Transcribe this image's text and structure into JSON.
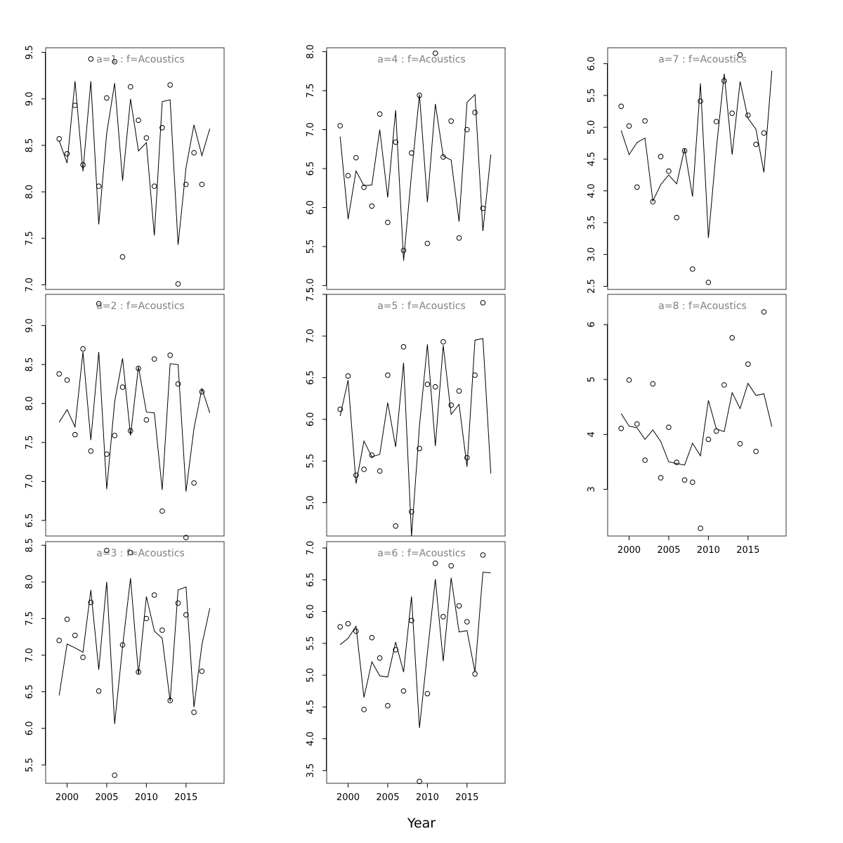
{
  "xlabel": "Year",
  "panel_title_color": "#7f7f7f",
  "chart_data": [
    {
      "type": "scatter",
      "title": "a=1  :  f=Acoustics",
      "ylim": [
        6.95,
        9.55
      ],
      "yticks": [
        7.0,
        7.5,
        8.0,
        8.5,
        9.0,
        9.5
      ],
      "x": [
        1999,
        2000,
        2001,
        2002,
        2003,
        2004,
        2005,
        2006,
        2007,
        2008,
        2009,
        2010,
        2011,
        2012,
        2013,
        2014,
        2015,
        2016,
        2017,
        2018
      ],
      "series": [
        {
          "mode": "points",
          "values": [
            8.57,
            8.41,
            8.93,
            8.29,
            9.43,
            8.06,
            9.01,
            9.4,
            7.3,
            9.13,
            8.77,
            8.58,
            8.06,
            8.69,
            9.15,
            7.01,
            8.08,
            8.42,
            8.08,
            null
          ]
        },
        {
          "mode": "line",
          "values": [
            8.55,
            8.31,
            9.19,
            8.22,
            9.19,
            7.65,
            8.63,
            9.17,
            8.12,
            9.0,
            8.44,
            8.53,
            7.53,
            8.97,
            8.99,
            7.43,
            8.26,
            8.72,
            8.39,
            8.68
          ]
        }
      ]
    },
    {
      "type": "scatter",
      "title": "a=2  :  f=Acoustics",
      "ylim": [
        6.3,
        9.4
      ],
      "yticks": [
        6.5,
        7.0,
        7.5,
        8.0,
        8.5,
        9.0
      ],
      "x": [
        1999,
        2000,
        2001,
        2002,
        2003,
        2004,
        2005,
        2006,
        2007,
        2008,
        2009,
        2010,
        2011,
        2012,
        2013,
        2014,
        2015,
        2016,
        2017,
        2018
      ],
      "series": [
        {
          "mode": "points",
          "values": [
            8.38,
            8.3,
            7.6,
            8.7,
            7.39,
            9.28,
            7.35,
            7.59,
            8.21,
            7.65,
            8.45,
            7.79,
            8.57,
            6.62,
            8.62,
            8.25,
            6.28,
            6.98,
            8.15,
            null
          ]
        },
        {
          "mode": "line",
          "values": [
            7.76,
            7.92,
            7.7,
            8.66,
            7.53,
            8.66,
            6.9,
            8.02,
            8.58,
            7.59,
            8.47,
            7.89,
            7.88,
            6.89,
            8.51,
            8.5,
            6.87,
            7.68,
            8.19,
            7.88
          ]
        }
      ]
    },
    {
      "type": "scatter",
      "title": "a=3  :  f=Acoustics",
      "ylim": [
        5.25,
        8.55
      ],
      "yticks": [
        5.5,
        6.0,
        6.5,
        7.0,
        7.5,
        8.0,
        8.5
      ],
      "x": [
        1999,
        2000,
        2001,
        2002,
        2003,
        2004,
        2005,
        2006,
        2007,
        2008,
        2009,
        2010,
        2011,
        2012,
        2013,
        2014,
        2015,
        2016,
        2017,
        2018
      ],
      "series": [
        {
          "mode": "points",
          "values": [
            7.2,
            7.49,
            7.27,
            6.97,
            7.72,
            6.51,
            8.43,
            5.36,
            7.14,
            8.4,
            6.77,
            7.5,
            7.82,
            7.34,
            6.38,
            7.71,
            7.55,
            6.22,
            6.78,
            null
          ]
        },
        {
          "mode": "line",
          "values": [
            6.45,
            7.15,
            7.1,
            7.04,
            7.89,
            6.8,
            8.0,
            6.06,
            7.12,
            8.05,
            6.74,
            7.8,
            7.33,
            7.23,
            6.37,
            7.89,
            7.93,
            6.29,
            7.14,
            7.64
          ]
        }
      ]
    },
    {
      "type": "scatter",
      "title": "a=4  :  f=Acoustics",
      "ylim": [
        4.95,
        8.05
      ],
      "yticks": [
        5.0,
        5.5,
        6.0,
        6.5,
        7.0,
        7.5,
        8.0
      ],
      "x": [
        1999,
        2000,
        2001,
        2002,
        2003,
        2004,
        2005,
        2006,
        2007,
        2008,
        2009,
        2010,
        2011,
        2012,
        2013,
        2014,
        2015,
        2016,
        2017,
        2018
      ],
      "series": [
        {
          "mode": "points",
          "values": [
            7.05,
            6.41,
            6.64,
            6.26,
            6.02,
            7.2,
            5.81,
            6.84,
            5.45,
            6.7,
            7.44,
            5.54,
            7.98,
            6.65,
            7.11,
            5.61,
            7.0,
            7.22,
            5.99,
            null
          ]
        },
        {
          "mode": "line",
          "values": [
            6.91,
            5.85,
            6.47,
            6.28,
            6.29,
            7.0,
            6.13,
            7.25,
            5.32,
            6.43,
            7.45,
            6.07,
            7.33,
            6.66,
            6.61,
            5.82,
            7.35,
            7.45,
            5.7,
            6.68
          ]
        }
      ]
    },
    {
      "type": "scatter",
      "title": "a=5  :  f=Acoustics",
      "ylim": [
        4.6,
        7.5
      ],
      "yticks": [
        5.0,
        5.5,
        6.0,
        6.5,
        7.0,
        7.5
      ],
      "x": [
        1999,
        2000,
        2001,
        2002,
        2003,
        2004,
        2005,
        2006,
        2007,
        2008,
        2009,
        2010,
        2011,
        2012,
        2013,
        2014,
        2015,
        2016,
        2017,
        2018
      ],
      "series": [
        {
          "mode": "points",
          "values": [
            6.12,
            6.52,
            5.33,
            5.4,
            5.57,
            5.38,
            6.53,
            4.72,
            6.87,
            4.89,
            5.65,
            6.42,
            6.39,
            6.93,
            6.17,
            6.34,
            5.54,
            6.53,
            7.4,
            null
          ]
        },
        {
          "mode": "line",
          "values": [
            6.04,
            6.47,
            5.23,
            5.74,
            5.55,
            5.58,
            6.2,
            5.67,
            6.68,
            4.6,
            5.92,
            6.9,
            5.68,
            6.89,
            6.06,
            6.18,
            5.43,
            6.95,
            6.97,
            5.35
          ]
        }
      ]
    },
    {
      "type": "scatter",
      "title": "a=6  :  f=Acoustics",
      "ylim": [
        3.3,
        7.1
      ],
      "yticks": [
        3.5,
        4.0,
        4.5,
        5.0,
        5.5,
        6.0,
        6.5,
        7.0
      ],
      "x": [
        1999,
        2000,
        2001,
        2002,
        2003,
        2004,
        2005,
        2006,
        2007,
        2008,
        2009,
        2010,
        2011,
        2012,
        2013,
        2014,
        2015,
        2016,
        2017,
        2018
      ],
      "series": [
        {
          "mode": "points",
          "values": [
            5.76,
            5.81,
            5.69,
            4.46,
            5.59,
            5.27,
            4.52,
            5.4,
            4.75,
            5.86,
            3.33,
            4.71,
            6.76,
            5.92,
            6.72,
            6.09,
            5.84,
            5.02,
            6.89,
            null
          ]
        },
        {
          "mode": "line",
          "values": [
            5.48,
            5.58,
            5.77,
            4.65,
            5.21,
            4.99,
            4.97,
            5.52,
            5.05,
            6.24,
            4.17,
            5.35,
            6.51,
            5.22,
            6.53,
            5.68,
            5.7,
            5.05,
            6.62,
            6.61
          ]
        }
      ]
    },
    {
      "type": "scatter",
      "title": "a=7  :  f=Acoustics",
      "ylim": [
        2.45,
        6.25
      ],
      "yticks": [
        2.5,
        3.0,
        3.5,
        4.0,
        4.5,
        5.0,
        5.5,
        6.0
      ],
      "x": [
        1999,
        2000,
        2001,
        2002,
        2003,
        2004,
        2005,
        2006,
        2007,
        2008,
        2009,
        2010,
        2011,
        2012,
        2013,
        2014,
        2015,
        2016,
        2017,
        2018
      ],
      "series": [
        {
          "mode": "points",
          "values": [
            5.33,
            5.02,
            4.06,
            5.1,
            3.83,
            4.54,
            4.31,
            3.58,
            4.63,
            2.77,
            5.41,
            2.56,
            5.09,
            5.73,
            5.22,
            6.14,
            5.19,
            4.73,
            4.91,
            null
          ]
        },
        {
          "mode": "line",
          "values": [
            4.95,
            4.57,
            4.76,
            4.83,
            3.84,
            4.1,
            4.25,
            4.11,
            4.66,
            3.91,
            5.69,
            3.26,
            4.66,
            5.84,
            4.57,
            5.72,
            5.14,
            4.97,
            4.29,
            5.89
          ]
        }
      ]
    },
    {
      "type": "scatter",
      "title": "a=8  :  f=Acoustics",
      "ylim": [
        2.15,
        6.55
      ],
      "yticks": [
        3,
        4,
        5,
        6
      ],
      "x": [
        1999,
        2000,
        2001,
        2002,
        2003,
        2004,
        2005,
        2006,
        2007,
        2008,
        2009,
        2010,
        2011,
        2012,
        2013,
        2014,
        2015,
        2016,
        2017,
        2018
      ],
      "series": [
        {
          "mode": "points",
          "values": [
            4.11,
            4.99,
            4.19,
            3.53,
            4.92,
            3.21,
            4.13,
            3.49,
            3.17,
            3.13,
            2.29,
            3.91,
            4.06,
            4.9,
            5.76,
            3.83,
            5.28,
            3.69,
            6.23,
            null
          ]
        },
        {
          "mode": "line",
          "values": [
            4.38,
            4.15,
            4.12,
            3.91,
            4.08,
            3.87,
            3.5,
            3.47,
            3.44,
            3.84,
            3.61,
            4.62,
            4.1,
            4.05,
            4.76,
            4.47,
            4.93,
            4.71,
            4.74,
            4.14
          ]
        }
      ]
    }
  ],
  "xaxis": {
    "ticks": [
      2000,
      2005,
      2010,
      2015
    ],
    "range": [
      1997.3,
      2019.8
    ]
  }
}
